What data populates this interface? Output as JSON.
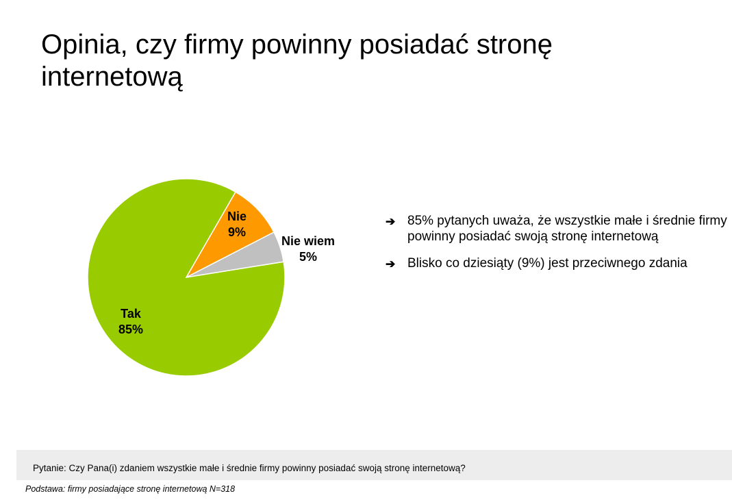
{
  "title": "Opinia, czy firmy powinny posiadać stronę internetową",
  "chart_data": {
    "type": "pie",
    "slices": [
      {
        "label": "Nie",
        "value": 9,
        "value_label": "9%",
        "color": "#ff9900"
      },
      {
        "label": "Nie wiem",
        "value": 5,
        "value_label": "5%",
        "color": "#c0c0c0"
      },
      {
        "label": "Tak",
        "value": 85,
        "value_label": "85%",
        "color": "#99cc00"
      }
    ]
  },
  "bullets": [
    {
      "icon": "arrow-right-icon",
      "text": "85% pytanych uważa, że wszystkie małe i średnie firmy powinny posiadać swoją stronę internetową"
    },
    {
      "icon": "arrow-right-icon",
      "text": "Blisko co dziesiąty (9%) jest przeciwnego zdania"
    }
  ],
  "question": "Pytanie: Czy Pana(i) zdaniem wszystkie małe i średnie firmy powinny posiadać swoją stronę internetową?",
  "basis": "Podstawa: firmy posiadające stronę internetową N=318"
}
